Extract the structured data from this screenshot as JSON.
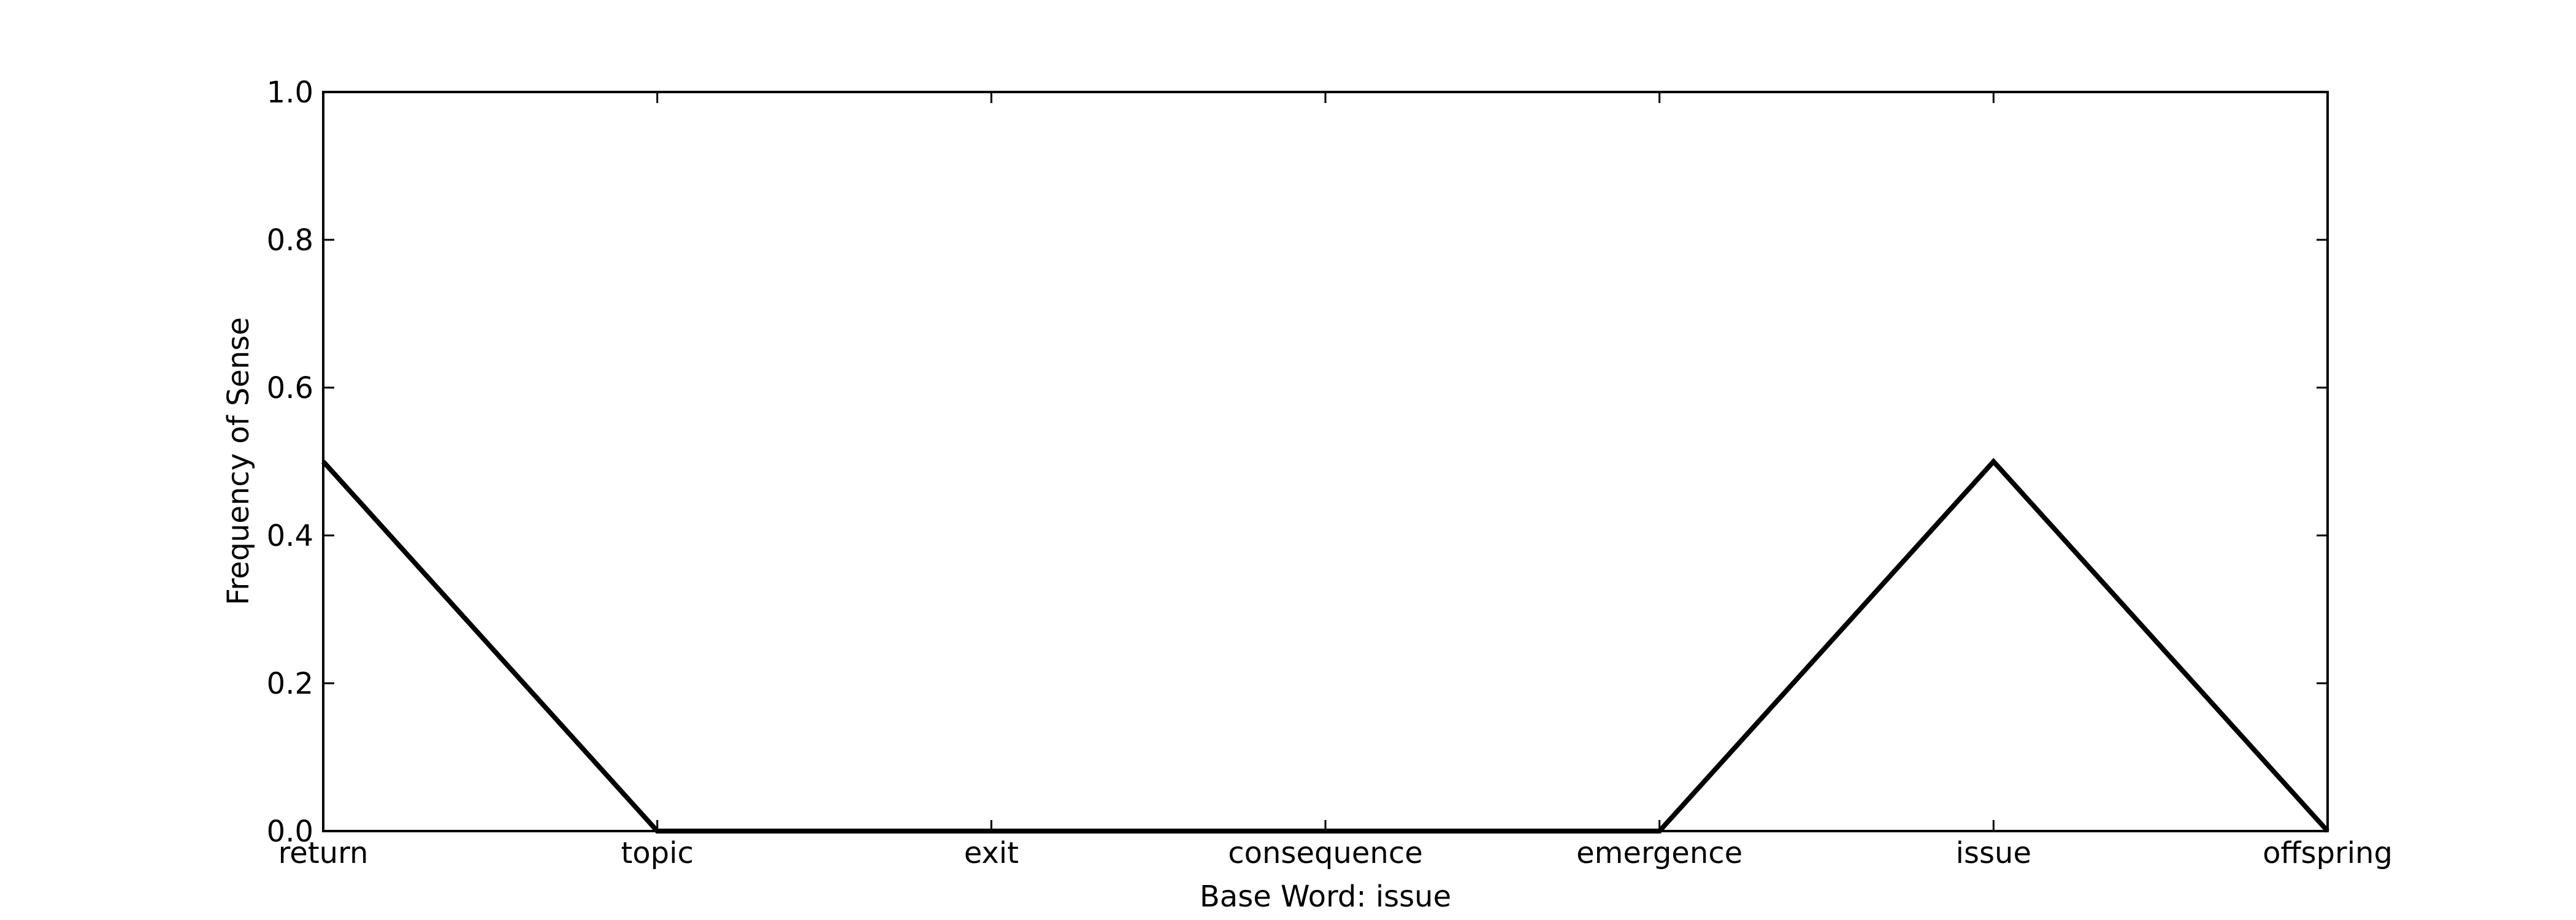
{
  "chart_data": {
    "type": "line",
    "categories": [
      "return",
      "topic",
      "exit",
      "consequence",
      "emergence",
      "issue",
      "offspring"
    ],
    "values": [
      0.5,
      0.0,
      0.0,
      0.0,
      0.0,
      0.5,
      0.0
    ],
    "title": "",
    "xlabel": "Base Word: issue",
    "ylabel": "Frequency of Sense",
    "ylim": [
      0.0,
      1.0
    ],
    "yticks": [
      "0.0",
      "0.2",
      "0.4",
      "0.6",
      "0.8",
      "1.0"
    ],
    "grid": false,
    "line_color": "#000000"
  }
}
